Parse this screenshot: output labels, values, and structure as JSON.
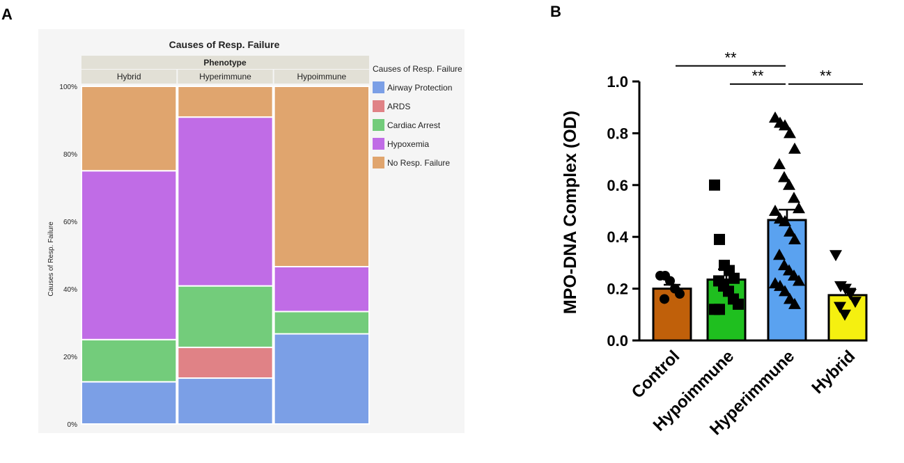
{
  "panels": {
    "a_label": "A",
    "b_label": "B"
  },
  "chart_data": [
    {
      "type": "mosaic",
      "title": "Causes of Resp. Failure",
      "facet_title": "Phenotype",
      "ylabel": "Causes of Resp. Failure",
      "y_ticks": [
        "0%",
        "20%",
        "40%",
        "60%",
        "80%",
        "100%"
      ],
      "ylim": [
        0,
        100
      ],
      "categories": [
        "Hybrid",
        "Hyperimmune",
        "Hypoimmune"
      ],
      "legend_title": "Causes of Resp. Failure",
      "colors": {
        "Airway Protection": "#7b9fe6",
        "ARDS": "#e08286",
        "Cardiac Arrest": "#73cc7b",
        "Hypoxemia": "#c06ce6",
        "No Resp. Failure": "#e0a56e"
      },
      "series": [
        {
          "name": "Airway Protection",
          "values": [
            12.5,
            13.6,
            26.7
          ]
        },
        {
          "name": "ARDS",
          "values": [
            0,
            9.1,
            0
          ]
        },
        {
          "name": "Cardiac Arrest",
          "values": [
            12.5,
            18.2,
            6.6
          ]
        },
        {
          "name": "Hypoxemia",
          "values": [
            50.0,
            50.0,
            13.3
          ]
        },
        {
          "name": "No Resp. Failure",
          "values": [
            25.0,
            9.1,
            53.4
          ]
        }
      ]
    },
    {
      "type": "bar_scatter",
      "ylabel": "MPO-DNA Complex (OD)",
      "ylim": [
        0,
        1.0
      ],
      "y_ticks": [
        "0.0",
        "0.2",
        "0.4",
        "0.6",
        "0.8",
        "1.0"
      ],
      "y_tick_values": [
        0,
        0.2,
        0.4,
        0.6,
        0.8,
        1.0
      ],
      "categories": [
        "Control",
        "Hypoimmune",
        "Hyperimmune",
        "Hybrid"
      ],
      "bar_colors": [
        "#c0600a",
        "#1fbf1f",
        "#5aa2f0",
        "#f5f010"
      ],
      "means": [
        0.2,
        0.235,
        0.465,
        0.175
      ],
      "sem": [
        0.015,
        0.04,
        0.04,
        0.025
      ],
      "markers": [
        "circle",
        "square",
        "triangle-up",
        "triangle-down"
      ],
      "points": [
        [
          0.25,
          0.25,
          0.23,
          0.2,
          0.18,
          0.16
        ],
        [
          0.6,
          0.39,
          0.29,
          0.27,
          0.24,
          0.23,
          0.21,
          0.19,
          0.16,
          0.14,
          0.12,
          0.12
        ],
        [
          0.86,
          0.84,
          0.83,
          0.8,
          0.74,
          0.68,
          0.63,
          0.6,
          0.55,
          0.51,
          0.5,
          0.47,
          0.46,
          0.42,
          0.39,
          0.33,
          0.29,
          0.27,
          0.25,
          0.23,
          0.22,
          0.21,
          0.19,
          0.16,
          0.14
        ],
        [
          0.33,
          0.21,
          0.2,
          0.18,
          0.15,
          0.13,
          0.1
        ]
      ],
      "significance": [
        {
          "from": "Control",
          "to": "Hyperimmune",
          "label": "**",
          "level": 1.06
        },
        {
          "from": "Hypoimmune",
          "to": "Hyperimmune",
          "label": "**",
          "level": 0.99
        },
        {
          "from": "Hyperimmune",
          "to": "Hybrid",
          "label": "**",
          "level": 0.99
        }
      ]
    }
  ]
}
